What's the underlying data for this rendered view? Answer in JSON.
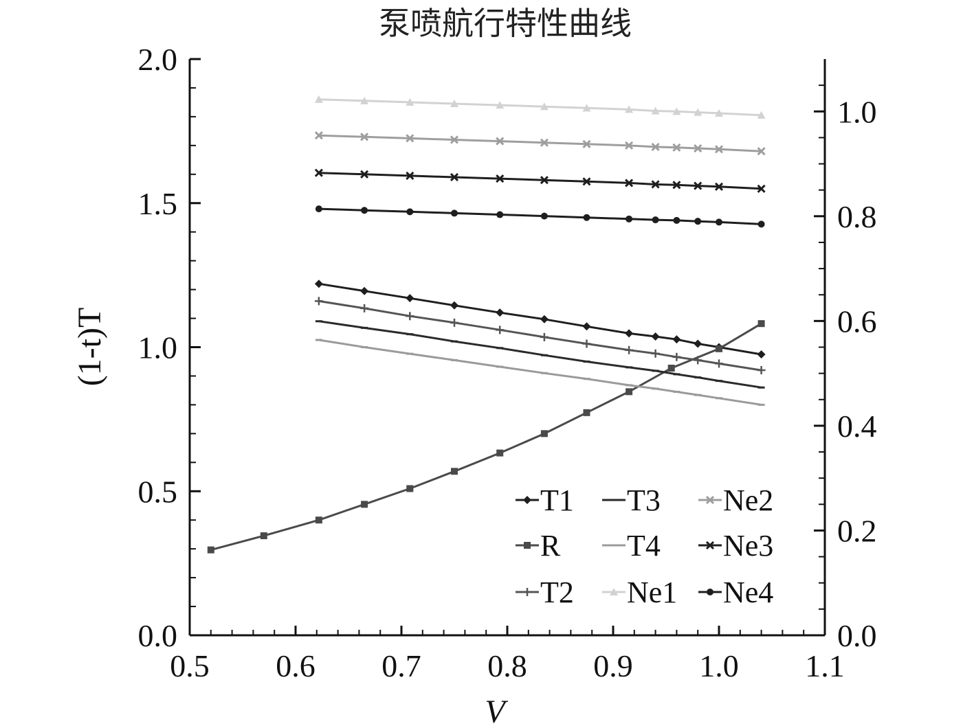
{
  "chart_data": {
    "type": "line",
    "title": "泵喷航行特性曲线",
    "xlabel": "V",
    "ylabel": "(1-t)T",
    "y2label": "",
    "xlim": [
      0.5,
      1.1
    ],
    "ylim": [
      0.0,
      2.0
    ],
    "y2lim": [
      0.0,
      1.1
    ],
    "x_ticks": [
      "0.5",
      "0.6",
      "0.7",
      "0.8",
      "0.9",
      "1.0",
      "1.1"
    ],
    "y_ticks": [
      "0.0",
      "0.5",
      "1.0",
      "1.5",
      "2.0"
    ],
    "y2_ticks": [
      "0.0",
      "0.2",
      "0.4",
      "0.6",
      "0.8",
      "1.0"
    ],
    "x_tick_values": [
      0.5,
      0.6,
      0.7,
      0.8,
      0.9,
      1.0,
      1.1
    ],
    "y_tick_values": [
      0.0,
      0.5,
      1.0,
      1.5,
      2.0
    ],
    "y2_tick_values": [
      0.0,
      0.2,
      0.4,
      0.6,
      0.8,
      1.0
    ],
    "grid": false,
    "legend_position": "bottom-right",
    "series": [
      {
        "name": "T1",
        "axis": "left",
        "marker": "diamond",
        "color": "#1e1e1e",
        "x": [
          0.622,
          0.665,
          0.708,
          0.75,
          0.793,
          0.835,
          0.875,
          0.915,
          0.94,
          0.96,
          0.98,
          1.0,
          1.04
        ],
        "y": [
          1.22,
          1.195,
          1.17,
          1.145,
          1.12,
          1.097,
          1.072,
          1.048,
          1.037,
          1.027,
          1.012,
          1.0,
          0.975
        ]
      },
      {
        "name": "R",
        "axis": "right",
        "marker": "square",
        "color": "#4a4a4a",
        "x": [
          0.52,
          0.57,
          0.622,
          0.665,
          0.708,
          0.75,
          0.793,
          0.835,
          0.875,
          0.915,
          0.955,
          1.0,
          1.04
        ],
        "y": [
          0.163,
          0.19,
          0.22,
          0.25,
          0.28,
          0.313,
          0.348,
          0.385,
          0.425,
          0.465,
          0.51,
          0.547,
          0.595
        ]
      },
      {
        "name": "T2",
        "axis": "left",
        "marker": "plus",
        "color": "#555555",
        "x": [
          0.622,
          0.665,
          0.708,
          0.75,
          0.793,
          0.835,
          0.875,
          0.915,
          0.94,
          0.96,
          0.98,
          1.0,
          1.04
        ],
        "y": [
          1.16,
          1.135,
          1.108,
          1.085,
          1.06,
          1.035,
          1.012,
          0.99,
          0.978,
          0.966,
          0.955,
          0.943,
          0.92
        ]
      },
      {
        "name": "T3",
        "axis": "left",
        "marker": "dash",
        "color": "#2a2a2a",
        "x": [
          0.622,
          0.665,
          0.708,
          0.75,
          0.793,
          0.835,
          0.875,
          0.915,
          0.94,
          0.96,
          0.98,
          1.0,
          1.04
        ],
        "y": [
          1.09,
          1.067,
          1.045,
          1.02,
          0.997,
          0.972,
          0.95,
          0.93,
          0.918,
          0.906,
          0.895,
          0.883,
          0.86
        ]
      },
      {
        "name": "T4",
        "axis": "left",
        "marker": "dash",
        "color": "#9a9a9a",
        "x": [
          0.622,
          0.665,
          0.708,
          0.75,
          0.793,
          0.835,
          0.875,
          0.915,
          0.94,
          0.96,
          0.98,
          1.0,
          1.04
        ],
        "y": [
          1.025,
          1.0,
          0.977,
          0.955,
          0.932,
          0.91,
          0.89,
          0.868,
          0.856,
          0.845,
          0.834,
          0.823,
          0.8
        ]
      },
      {
        "name": "Ne1",
        "axis": "left",
        "marker": "triangle",
        "color": "#d2d2d2",
        "x": [
          0.622,
          0.665,
          0.708,
          0.75,
          0.793,
          0.835,
          0.875,
          0.915,
          0.94,
          0.96,
          0.98,
          1.0,
          1.04
        ],
        "y": [
          1.86,
          1.855,
          1.85,
          1.845,
          1.84,
          1.835,
          1.83,
          1.825,
          1.82,
          1.818,
          1.815,
          1.812,
          1.805
        ]
      },
      {
        "name": "Ne2",
        "axis": "left",
        "marker": "x",
        "color": "#9e9e9e",
        "x": [
          0.622,
          0.665,
          0.708,
          0.75,
          0.793,
          0.835,
          0.875,
          0.915,
          0.94,
          0.96,
          0.98,
          1.0,
          1.04
        ],
        "y": [
          1.735,
          1.73,
          1.725,
          1.72,
          1.715,
          1.71,
          1.705,
          1.7,
          1.695,
          1.693,
          1.69,
          1.687,
          1.68
        ]
      },
      {
        "name": "Ne3",
        "axis": "left",
        "marker": "x",
        "color": "#1e1e1e",
        "x": [
          0.622,
          0.665,
          0.708,
          0.75,
          0.793,
          0.835,
          0.875,
          0.915,
          0.94,
          0.96,
          0.98,
          1.0,
          1.04
        ],
        "y": [
          1.605,
          1.6,
          1.595,
          1.59,
          1.585,
          1.58,
          1.575,
          1.57,
          1.565,
          1.563,
          1.56,
          1.557,
          1.55
        ]
      },
      {
        "name": "Ne4",
        "axis": "left",
        "marker": "circle",
        "color": "#1e1e1e",
        "x": [
          0.622,
          0.665,
          0.708,
          0.75,
          0.793,
          0.835,
          0.875,
          0.915,
          0.94,
          0.96,
          0.98,
          1.0,
          1.04
        ],
        "y": [
          1.48,
          1.475,
          1.47,
          1.465,
          1.46,
          1.455,
          1.45,
          1.445,
          1.442,
          1.44,
          1.437,
          1.434,
          1.427
        ]
      }
    ],
    "legend_order": [
      "T1",
      "T3",
      "Ne2",
      "R",
      "T4",
      "Ne3",
      "T2",
      "Ne1",
      "Ne4"
    ]
  }
}
